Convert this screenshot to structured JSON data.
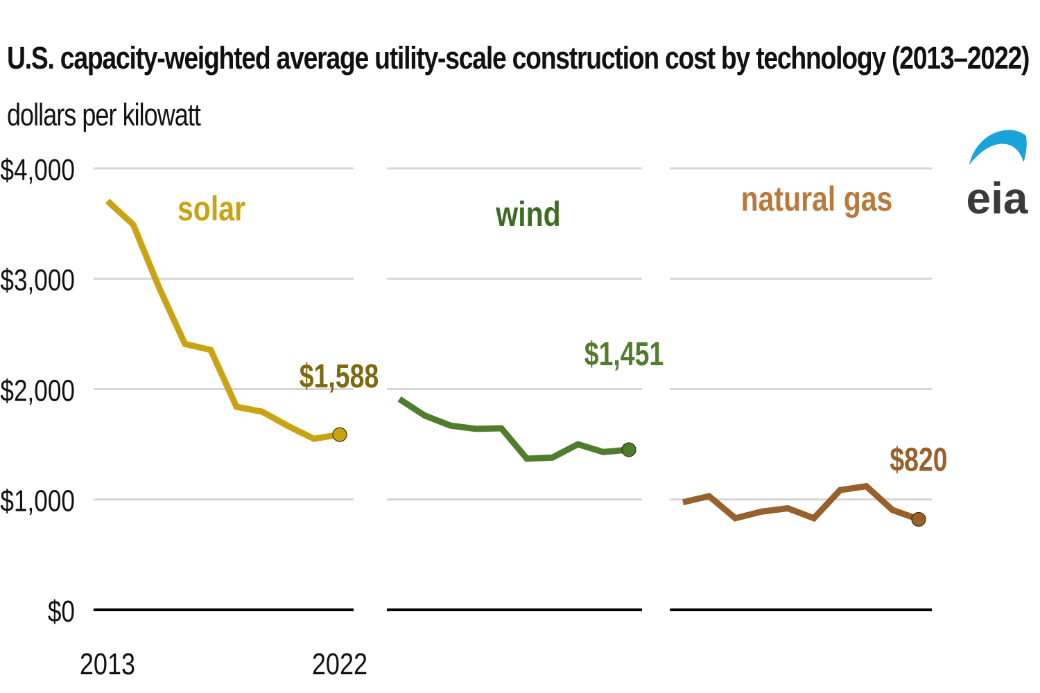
{
  "header": {
    "title": "U.S. capacity-weighted average utility-scale construction cost by technology (2013–2022)",
    "subtitle": "dollars per kilowatt"
  },
  "logo": {
    "text": "eia",
    "colors": {
      "text": "#3a3a3a",
      "swoosh": "#1aa3d9"
    }
  },
  "chart_data": {
    "type": "line",
    "layout": "small-multiples",
    "x": [
      2013,
      2014,
      2015,
      2016,
      2017,
      2018,
      2019,
      2020,
      2021,
      2022
    ],
    "x_tick_labels": [
      "2013",
      "2022"
    ],
    "ylim": [
      0,
      4000
    ],
    "y_ticks": [
      {
        "value": 0,
        "label": "$0"
      },
      {
        "value": 1000,
        "label": "$1,000"
      },
      {
        "value": 2000,
        "label": "$2,000"
      },
      {
        "value": 3000,
        "label": "$3,000"
      },
      {
        "value": 4000,
        "label": "$4,000"
      }
    ],
    "grid": true,
    "series": [
      {
        "name": "solar",
        "color": "#c8a415",
        "label_color": "#c8a415",
        "end_label_color": "#7d6a10",
        "end_label": "$1,588",
        "values": [
          3705,
          3490,
          2920,
          2410,
          2355,
          1840,
          1795,
          1665,
          1550,
          1588
        ]
      },
      {
        "name": "wind",
        "color": "#4f7d2b",
        "label_color": "#3e6a24",
        "end_label_color": "#4f7d2b",
        "end_label": "$1,451",
        "values": [
          1910,
          1760,
          1670,
          1640,
          1645,
          1370,
          1380,
          1500,
          1430,
          1451
        ]
      },
      {
        "name": "natural gas",
        "color": "#98602a",
        "label_color": "#b87a3a",
        "end_label_color": "#98602a",
        "end_label": "$820",
        "values": [
          975,
          1030,
          830,
          890,
          920,
          830,
          1085,
          1120,
          905,
          820
        ]
      }
    ]
  }
}
